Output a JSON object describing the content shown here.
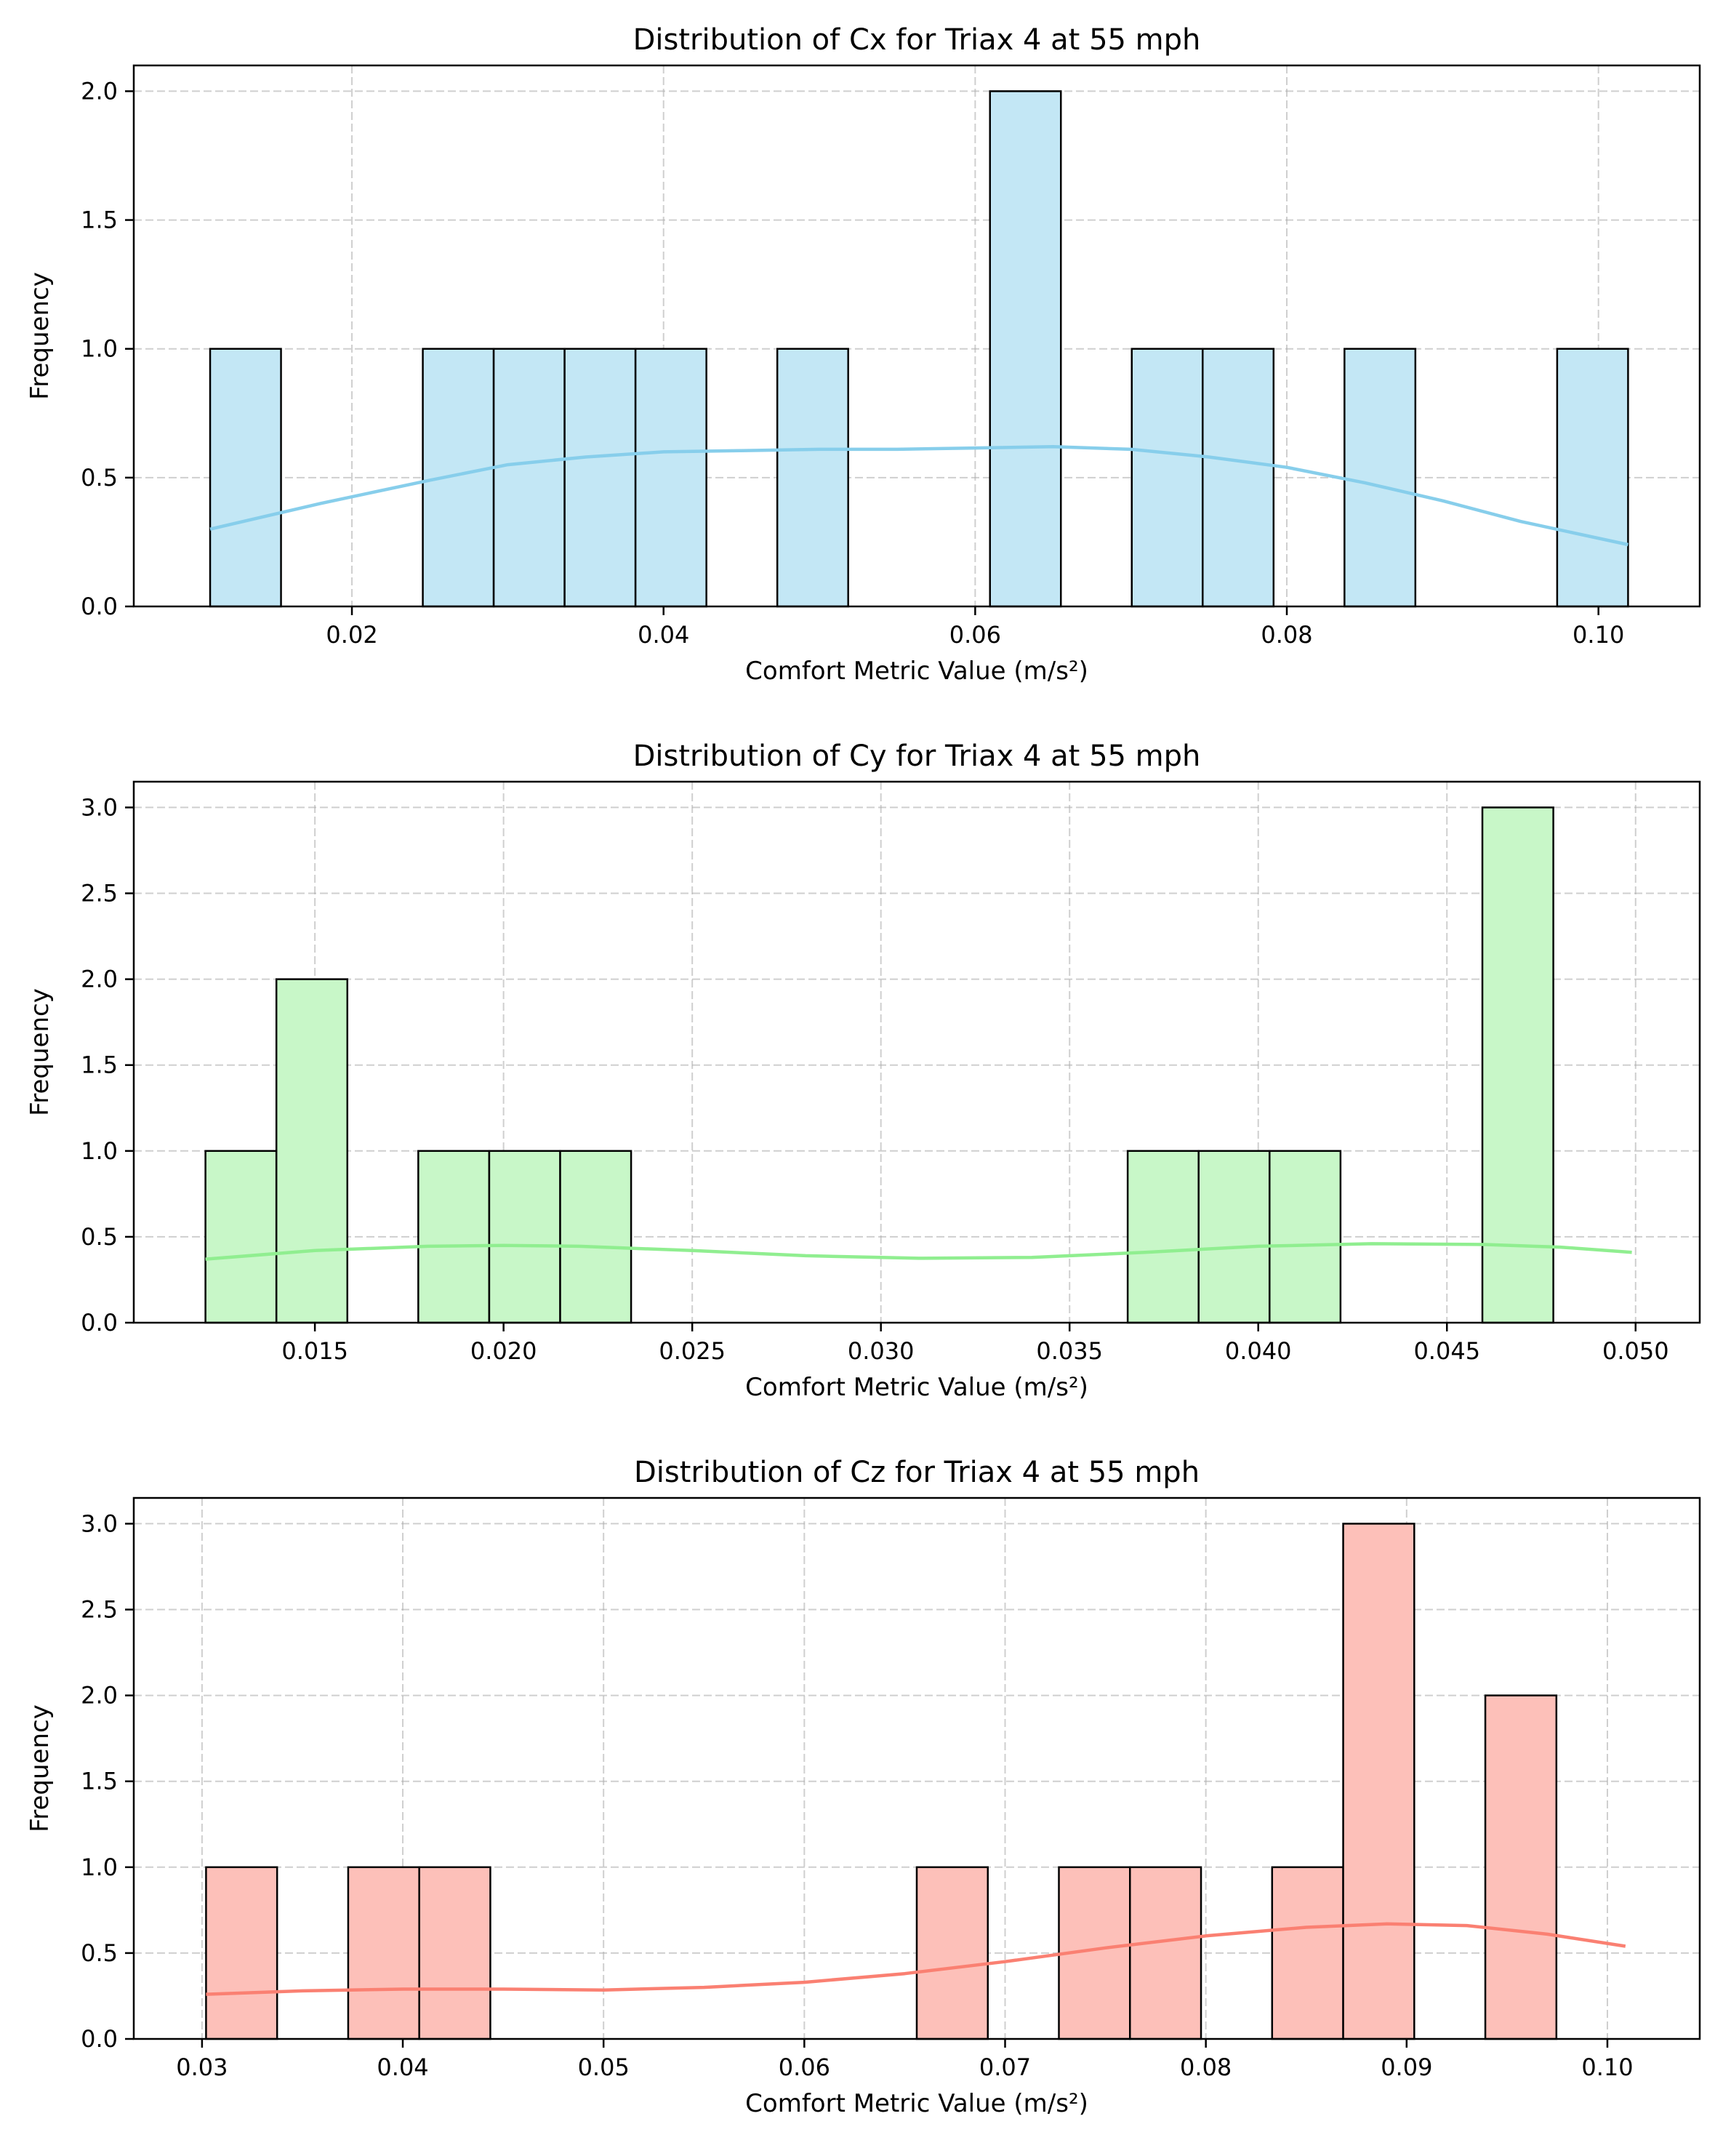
{
  "chart_data": [
    {
      "type": "bar",
      "subtype": "histogram-with-kde",
      "title": "Distribution of Cx for Triax 4 at 55 mph",
      "xlabel": "Comfort Metric Value (m/s²)",
      "ylabel": "Frequency",
      "xlim": [
        0.006,
        0.1065
      ],
      "ylim": [
        0,
        2.1
      ],
      "xticks": [
        0.02,
        0.04,
        0.06,
        0.08,
        0.1
      ],
      "xtick_labels": [
        "0.02",
        "0.04",
        "0.06",
        "0.08",
        "0.10"
      ],
      "yticks": [
        0.0,
        0.5,
        1.0,
        1.5,
        2.0
      ],
      "ytick_labels": [
        "0.0",
        "0.5",
        "1.0",
        "1.5",
        "2.0"
      ],
      "grid": true,
      "color": "#87ceeb",
      "bin_start": 0.0109,
      "bin_width": 0.00455,
      "counts": [
        1,
        0,
        0,
        1,
        1,
        1,
        1,
        0,
        1,
        0,
        0,
        2,
        0,
        1,
        1,
        0,
        1,
        0,
        0,
        1
      ],
      "kde": {
        "x": [
          0.0109,
          0.018,
          0.025,
          0.03,
          0.035,
          0.04,
          0.045,
          0.05,
          0.055,
          0.06,
          0.065,
          0.07,
          0.075,
          0.08,
          0.085,
          0.09,
          0.095,
          0.1019
        ],
        "y": [
          0.3,
          0.4,
          0.49,
          0.55,
          0.58,
          0.6,
          0.605,
          0.61,
          0.61,
          0.615,
          0.62,
          0.61,
          0.58,
          0.54,
          0.48,
          0.41,
          0.33,
          0.24
        ]
      }
    },
    {
      "type": "bar",
      "subtype": "histogram-with-kde",
      "title": "Distribution of Cy for Triax 4 at 55 mph",
      "xlabel": "Comfort Metric Value (m/s²)",
      "ylabel": "Frequency",
      "xlim": [
        0.0102,
        0.0517
      ],
      "ylim": [
        0,
        3.15
      ],
      "xticks": [
        0.015,
        0.02,
        0.025,
        0.03,
        0.035,
        0.04,
        0.045,
        0.05
      ],
      "xtick_labels": [
        "0.015",
        "0.020",
        "0.025",
        "0.030",
        "0.035",
        "0.040",
        "0.045",
        "0.050"
      ],
      "yticks": [
        0.0,
        0.5,
        1.0,
        1.5,
        2.0,
        2.5,
        3.0
      ],
      "ytick_labels": [
        "0.0",
        "0.5",
        "1.0",
        "1.5",
        "2.0",
        "2.5",
        "3.0"
      ],
      "grid": true,
      "color": "#90ee90",
      "bin_start": 0.0121,
      "bin_width": 0.00188,
      "counts": [
        1,
        2,
        0,
        1,
        1,
        1,
        0,
        0,
        0,
        0,
        0,
        0,
        0,
        1,
        1,
        1,
        0,
        0,
        3
      ],
      "kde": {
        "x": [
          0.0121,
          0.015,
          0.018,
          0.02,
          0.022,
          0.025,
          0.028,
          0.031,
          0.034,
          0.037,
          0.04,
          0.043,
          0.046,
          0.048,
          0.0499
        ],
        "y": [
          0.37,
          0.42,
          0.445,
          0.45,
          0.445,
          0.42,
          0.39,
          0.375,
          0.38,
          0.41,
          0.445,
          0.46,
          0.455,
          0.44,
          0.41
        ]
      }
    },
    {
      "type": "bar",
      "subtype": "histogram-with-kde",
      "title": "Distribution of Cz for Triax 4 at 55 mph",
      "xlabel": "Comfort Metric Value (m/s²)",
      "ylabel": "Frequency",
      "xlim": [
        0.0266,
        0.1046
      ],
      "ylim": [
        0,
        3.15
      ],
      "xticks": [
        0.03,
        0.04,
        0.05,
        0.06,
        0.07,
        0.08,
        0.09,
        0.1
      ],
      "xtick_labels": [
        "0.03",
        "0.04",
        "0.05",
        "0.06",
        "0.07",
        "0.08",
        "0.09",
        "0.10"
      ],
      "yticks": [
        0.0,
        0.5,
        1.0,
        1.5,
        2.0,
        2.5,
        3.0
      ],
      "ytick_labels": [
        "0.0",
        "0.5",
        "1.0",
        "1.5",
        "2.0",
        "2.5",
        "3.0"
      ],
      "grid": true,
      "color": "#fa8072",
      "bin_start": 0.0302,
      "bin_width": 0.00354,
      "counts": [
        1,
        0,
        1,
        1,
        0,
        0,
        0,
        0,
        0,
        0,
        1,
        0,
        1,
        1,
        0,
        1,
        3,
        0,
        2
      ],
      "kde": {
        "x": [
          0.0302,
          0.035,
          0.04,
          0.045,
          0.05,
          0.055,
          0.06,
          0.065,
          0.07,
          0.075,
          0.08,
          0.085,
          0.089,
          0.093,
          0.097,
          0.1009
        ],
        "y": [
          0.26,
          0.28,
          0.29,
          0.29,
          0.285,
          0.3,
          0.33,
          0.38,
          0.45,
          0.53,
          0.6,
          0.65,
          0.67,
          0.66,
          0.61,
          0.54
        ]
      }
    }
  ]
}
